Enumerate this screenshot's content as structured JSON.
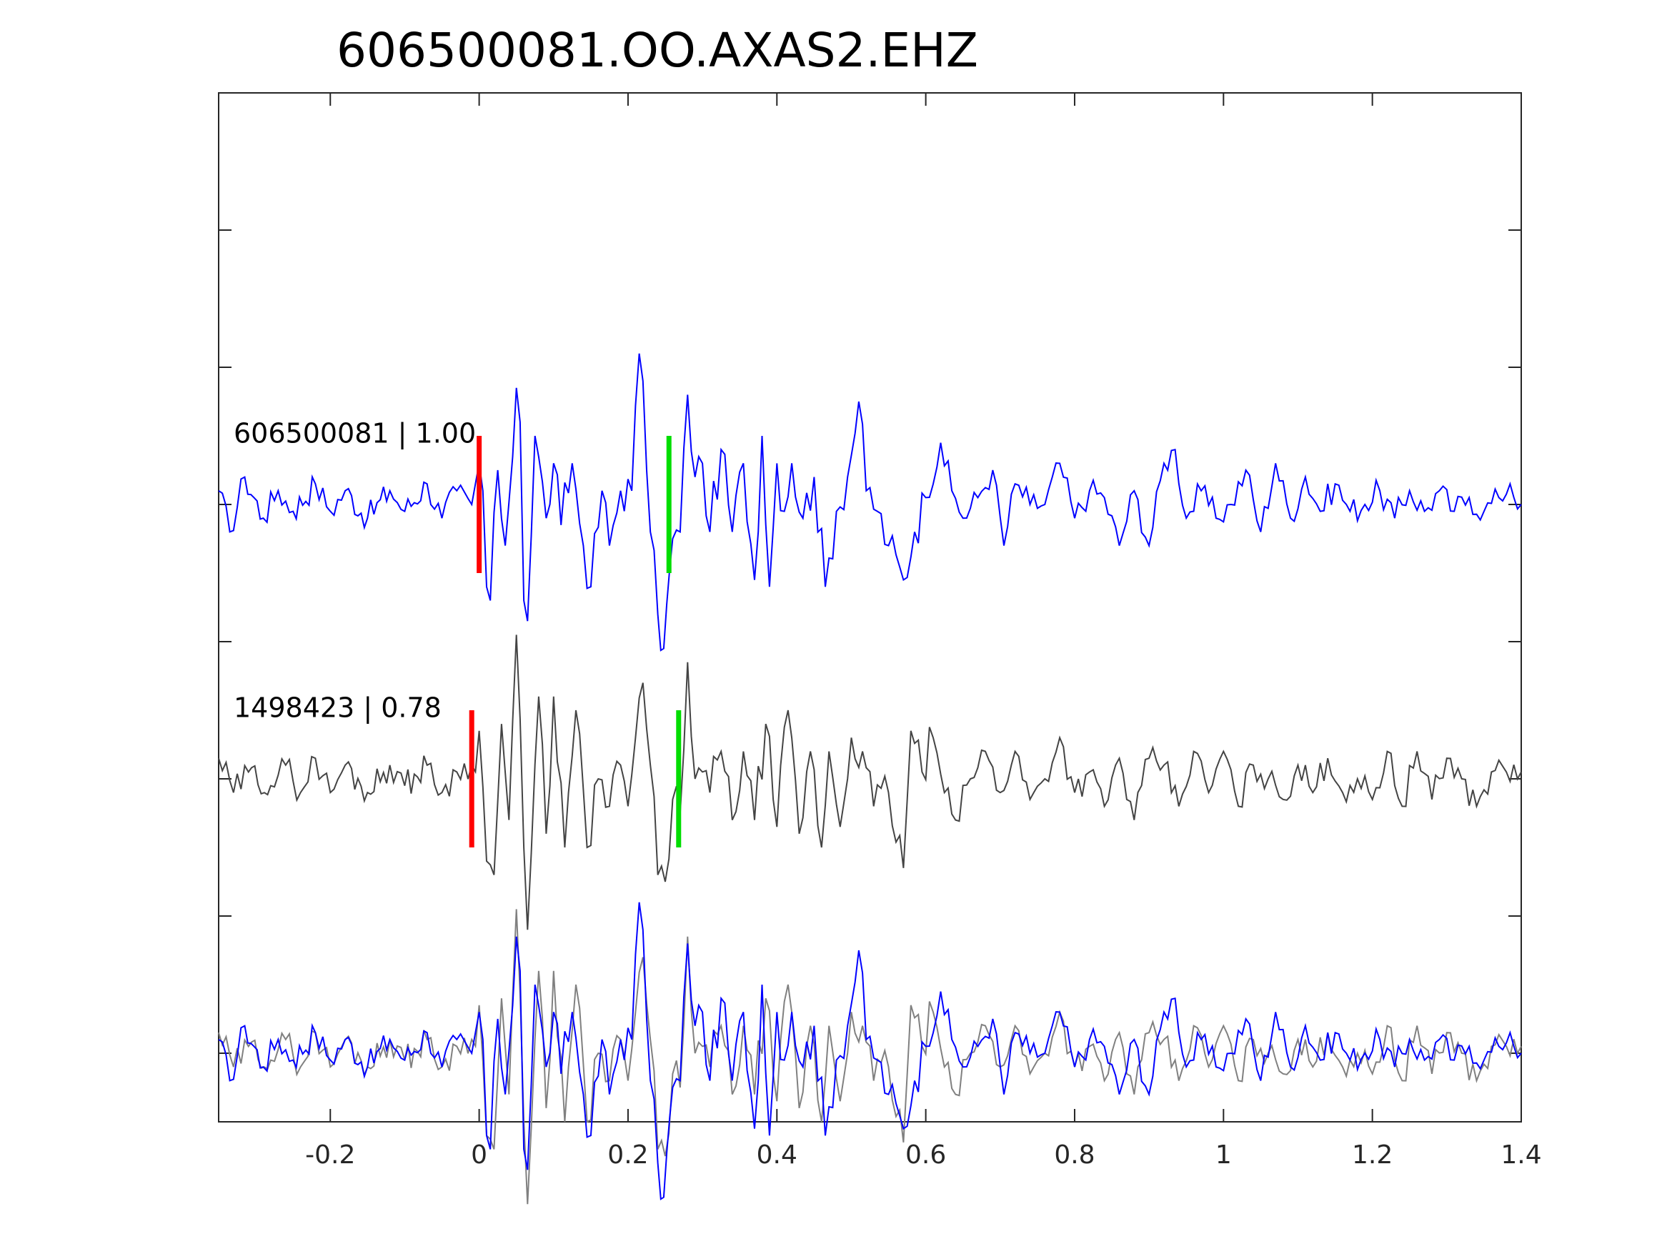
{
  "chart_data": {
    "type": "line",
    "title": "606500081.OO.AXAS2.EHZ",
    "xlabel": "",
    "ylabel": "",
    "xlim": [
      -0.35,
      1.4
    ],
    "x_ticks": [
      -0.2,
      0,
      0.2,
      0.4,
      0.6,
      0.8,
      1,
      1.2,
      1.4
    ],
    "x_tick_labels": [
      "-0.2",
      "0",
      "0.2",
      "0.4",
      "0.6",
      "0.8",
      "1",
      "1.2",
      "1.4"
    ],
    "y_ticks": [
      -4,
      -3,
      -2,
      -1,
      0,
      1,
      2
    ],
    "ylim": [
      -4.5,
      3
    ],
    "grid": false,
    "traces": [
      {
        "label": "606500081 | 1.00",
        "offset": 0,
        "color": "#0000ff",
        "p_pick": 0.0,
        "s_pick": 0.255,
        "keypoints": [
          [
            -0.35,
            0.1
          ],
          [
            -0.335,
            -0.2
          ],
          [
            -0.315,
            0.2
          ],
          [
            -0.29,
            -0.1
          ],
          [
            -0.27,
            0.1
          ],
          [
            -0.25,
            -0.05
          ],
          [
            -0.22,
            0.15
          ],
          [
            -0.2,
            -0.05
          ],
          [
            -0.18,
            0.1
          ],
          [
            -0.15,
            -0.1
          ],
          [
            -0.12,
            0.1
          ],
          [
            -0.1,
            -0.05
          ],
          [
            -0.07,
            0.15
          ],
          [
            -0.05,
            -0.1
          ],
          [
            -0.03,
            0.1
          ],
          [
            -0.01,
            0.0
          ],
          [
            0.0,
            0.3
          ],
          [
            0.005,
            0.1
          ],
          [
            0.01,
            -0.6
          ],
          [
            0.015,
            -0.7
          ],
          [
            0.025,
            0.25
          ],
          [
            0.035,
            -0.3
          ],
          [
            0.05,
            0.85
          ],
          [
            0.055,
            0.6
          ],
          [
            0.06,
            -0.7
          ],
          [
            0.065,
            -0.85
          ],
          [
            0.075,
            0.5
          ],
          [
            0.09,
            -0.1
          ],
          [
            0.1,
            0.3
          ],
          [
            0.11,
            -0.15
          ],
          [
            0.125,
            0.3
          ],
          [
            0.14,
            -0.3
          ],
          [
            0.15,
            -0.6
          ],
          [
            0.165,
            0.1
          ],
          [
            0.175,
            -0.3
          ],
          [
            0.19,
            0.1
          ],
          [
            0.205,
            0.1
          ],
          [
            0.215,
            1.1
          ],
          [
            0.22,
            0.9
          ],
          [
            0.23,
            -0.2
          ],
          [
            0.24,
            -0.8
          ],
          [
            0.248,
            -1.05
          ],
          [
            0.26,
            -0.25
          ],
          [
            0.27,
            -0.2
          ],
          [
            0.28,
            0.8
          ],
          [
            0.29,
            0.2
          ],
          [
            0.3,
            0.3
          ],
          [
            0.31,
            -0.2
          ],
          [
            0.325,
            0.4
          ],
          [
            0.34,
            -0.2
          ],
          [
            0.355,
            0.3
          ],
          [
            0.37,
            -0.55
          ],
          [
            0.38,
            0.5
          ],
          [
            0.39,
            -0.6
          ],
          [
            0.4,
            0.3
          ],
          [
            0.41,
            -0.05
          ],
          [
            0.42,
            0.3
          ],
          [
            0.435,
            -0.1
          ],
          [
            0.45,
            0.2
          ],
          [
            0.465,
            -0.6
          ],
          [
            0.48,
            -0.05
          ],
          [
            0.495,
            0.2
          ],
          [
            0.51,
            0.75
          ],
          [
            0.52,
            0.1
          ],
          [
            0.535,
            -0.05
          ],
          [
            0.55,
            -0.3
          ],
          [
            0.57,
            -0.55
          ],
          [
            0.585,
            -0.2
          ],
          [
            0.6,
            0.05
          ],
          [
            0.62,
            0.45
          ],
          [
            0.635,
            0.1
          ],
          [
            0.65,
            -0.1
          ],
          [
            0.67,
            0.05
          ],
          [
            0.69,
            0.25
          ],
          [
            0.705,
            -0.3
          ],
          [
            0.72,
            0.15
          ],
          [
            0.74,
            0.0
          ],
          [
            0.76,
            0.0
          ],
          [
            0.78,
            0.3
          ],
          [
            0.8,
            -0.1
          ],
          [
            0.82,
            0.1
          ],
          [
            0.84,
            0.05
          ],
          [
            0.86,
            -0.3
          ],
          [
            0.88,
            0.1
          ],
          [
            0.9,
            -0.3
          ],
          [
            0.92,
            0.3
          ],
          [
            0.935,
            0.4
          ],
          [
            0.95,
            -0.1
          ],
          [
            0.97,
            0.1
          ],
          [
            0.99,
            -0.1
          ],
          [
            1.01,
            0.0
          ],
          [
            1.03,
            0.25
          ],
          [
            1.05,
            -0.2
          ],
          [
            1.07,
            0.3
          ],
          [
            1.09,
            -0.1
          ],
          [
            1.11,
            0.2
          ],
          [
            1.13,
            -0.05
          ],
          [
            1.15,
            0.15
          ],
          [
            1.17,
            -0.05
          ],
          [
            1.19,
            0.0
          ],
          [
            1.21,
            0.1
          ],
          [
            1.23,
            -0.1
          ],
          [
            1.25,
            0.1
          ],
          [
            1.27,
            -0.05
          ],
          [
            1.29,
            0.1
          ],
          [
            1.31,
            -0.05
          ],
          [
            1.33,
            0.05
          ],
          [
            1.35,
            -0.05
          ],
          [
            1.37,
            0.05
          ],
          [
            1.385,
            0.15
          ],
          [
            1.4,
            0.0
          ]
        ]
      },
      {
        "label": "1498423 | 0.78",
        "offset": -2,
        "color": "#444444",
        "p_pick": -0.01,
        "s_pick": 0.268,
        "keypoints": [
          [
            -0.35,
            0.15
          ],
          [
            -0.33,
            -0.1
          ],
          [
            -0.31,
            0.05
          ],
          [
            -0.28,
            -0.05
          ],
          [
            -0.26,
            0.1
          ],
          [
            -0.24,
            -0.1
          ],
          [
            -0.22,
            0.15
          ],
          [
            -0.2,
            -0.1
          ],
          [
            -0.18,
            0.1
          ],
          [
            -0.15,
            -0.1
          ],
          [
            -0.12,
            0.1
          ],
          [
            -0.1,
            -0.05
          ],
          [
            -0.07,
            0.1
          ],
          [
            -0.05,
            -0.1
          ],
          [
            -0.03,
            0.05
          ],
          [
            -0.01,
            0.1
          ],
          [
            0.0,
            0.35
          ],
          [
            0.01,
            -0.6
          ],
          [
            0.02,
            -0.7
          ],
          [
            0.03,
            0.4
          ],
          [
            0.04,
            -0.3
          ],
          [
            0.05,
            1.05
          ],
          [
            0.06,
            -0.5
          ],
          [
            0.065,
            -1.1
          ],
          [
            0.08,
            0.6
          ],
          [
            0.09,
            -0.4
          ],
          [
            0.1,
            0.6
          ],
          [
            0.115,
            -0.5
          ],
          [
            0.13,
            0.5
          ],
          [
            0.145,
            -0.5
          ],
          [
            0.16,
            0.0
          ],
          [
            0.175,
            -0.2
          ],
          [
            0.19,
            0.1
          ],
          [
            0.2,
            -0.2
          ],
          [
            0.21,
            0.3
          ],
          [
            0.22,
            0.7
          ],
          [
            0.23,
            0.1
          ],
          [
            0.24,
            -0.7
          ],
          [
            0.25,
            -0.75
          ],
          [
            0.26,
            -0.15
          ],
          [
            0.27,
            -0.25
          ],
          [
            0.28,
            0.85
          ],
          [
            0.29,
            0.0
          ],
          [
            0.3,
            0.05
          ],
          [
            0.31,
            -0.1
          ],
          [
            0.325,
            0.2
          ],
          [
            0.34,
            -0.3
          ],
          [
            0.355,
            0.2
          ],
          [
            0.37,
            -0.3
          ],
          [
            0.385,
            0.4
          ],
          [
            0.4,
            -0.35
          ],
          [
            0.415,
            0.5
          ],
          [
            0.43,
            -0.4
          ],
          [
            0.445,
            0.2
          ],
          [
            0.46,
            -0.5
          ],
          [
            0.47,
            0.2
          ],
          [
            0.485,
            -0.35
          ],
          [
            0.5,
            0.3
          ],
          [
            0.515,
            0.2
          ],
          [
            0.53,
            -0.2
          ],
          [
            0.55,
            -0.1
          ],
          [
            0.57,
            -0.65
          ],
          [
            0.58,
            0.35
          ],
          [
            0.595,
            0.05
          ],
          [
            0.61,
            0.3
          ],
          [
            0.625,
            -0.1
          ],
          [
            0.64,
            -0.3
          ],
          [
            0.66,
            0.0
          ],
          [
            0.68,
            0.2
          ],
          [
            0.7,
            -0.1
          ],
          [
            0.72,
            0.2
          ],
          [
            0.74,
            -0.15
          ],
          [
            0.76,
            0.0
          ],
          [
            0.78,
            0.3
          ],
          [
            0.8,
            -0.1
          ],
          [
            0.82,
            0.05
          ],
          [
            0.84,
            -0.2
          ],
          [
            0.86,
            0.15
          ],
          [
            0.88,
            -0.3
          ],
          [
            0.9,
            0.15
          ],
          [
            0.92,
            0.1
          ],
          [
            0.94,
            -0.2
          ],
          [
            0.96,
            0.2
          ],
          [
            0.98,
            -0.1
          ],
          [
            1.0,
            0.2
          ],
          [
            1.02,
            -0.2
          ],
          [
            1.04,
            0.1
          ],
          [
            1.06,
            0.0
          ],
          [
            1.08,
            -0.15
          ],
          [
            1.1,
            0.1
          ],
          [
            1.12,
            -0.1
          ],
          [
            1.14,
            0.15
          ],
          [
            1.16,
            -0.1
          ],
          [
            1.18,
            0.0
          ],
          [
            1.2,
            -0.15
          ],
          [
            1.22,
            0.2
          ],
          [
            1.24,
            -0.2
          ],
          [
            1.26,
            0.2
          ],
          [
            1.28,
            -0.15
          ],
          [
            1.3,
            0.15
          ],
          [
            1.32,
            0.0
          ],
          [
            1.34,
            -0.2
          ],
          [
            1.36,
            0.05
          ],
          [
            1.38,
            0.05
          ],
          [
            1.4,
            0.05
          ]
        ]
      },
      {
        "label": "",
        "offset": -4,
        "overlay": true,
        "colors": [
          "#808080",
          "#0000ff"
        ]
      }
    ]
  }
}
